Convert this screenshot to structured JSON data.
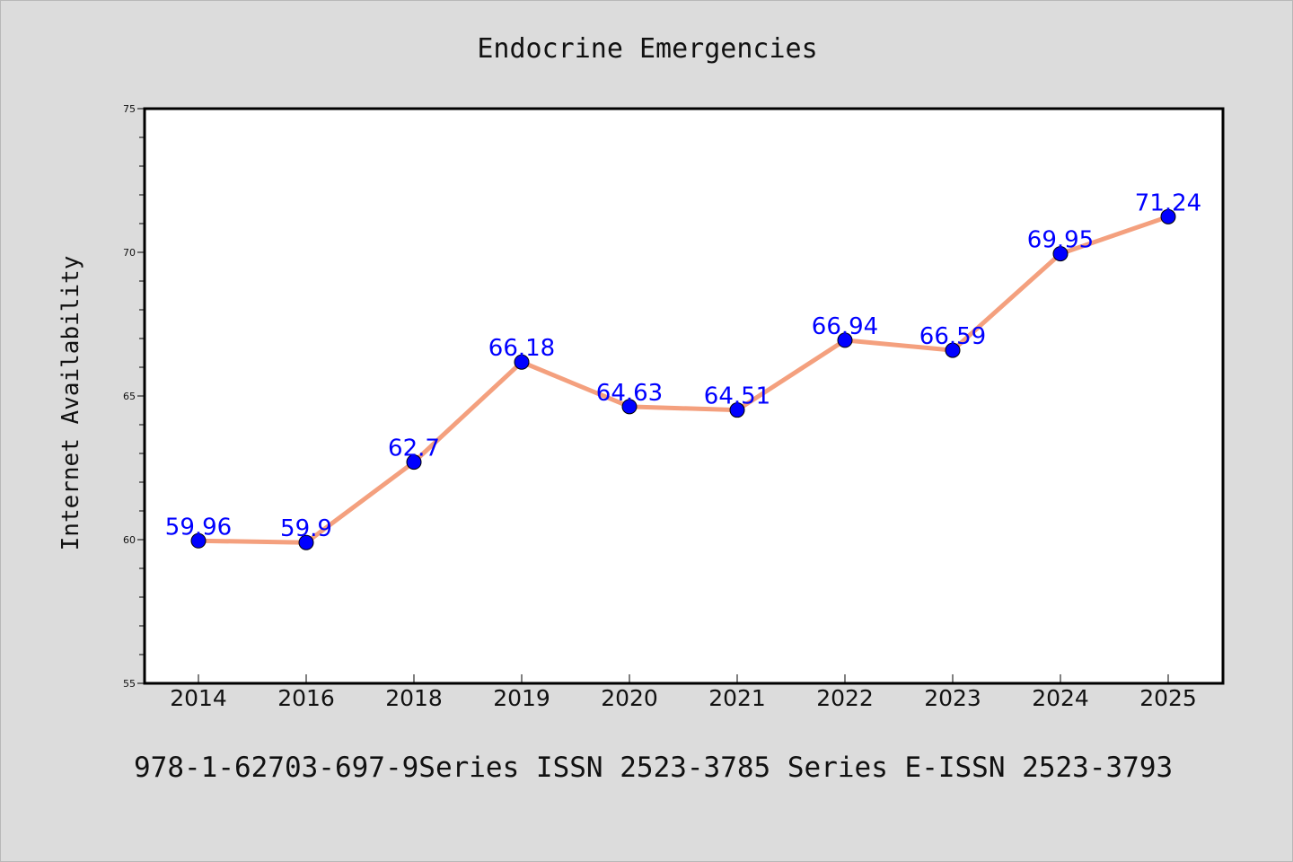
{
  "chart_data": {
    "type": "line",
    "title": "Endocrine Emergencies",
    "xlabel": "",
    "ylabel": "Internet Availability",
    "categories": [
      "2014",
      "2016",
      "2018",
      "2019",
      "2020",
      "2021",
      "2022",
      "2023",
      "2024",
      "2025"
    ],
    "series": [
      {
        "values": [
          59.96,
          59.9,
          62.7,
          66.18,
          64.63,
          64.51,
          66.94,
          66.59,
          69.95,
          71.24
        ],
        "data_labels": [
          "59.96",
          "59.9",
          "62.7",
          "66.18",
          "64.63",
          "64.51",
          "66.94",
          "66.59",
          "69.95",
          "71.24"
        ]
      }
    ],
    "ylim": [
      55,
      75
    ],
    "yticks": [
      "55",
      "60",
      "65",
      "70",
      "75"
    ],
    "grid": false,
    "legend": "none",
    "line_color": "#f4a07e",
    "marker_color": "#0000ff",
    "label_color": "#0000ff"
  },
  "footer": {
    "text": "978-1-62703-697-9Series ISSN 2523-3785 Series E-ISSN 2523-3793"
  }
}
